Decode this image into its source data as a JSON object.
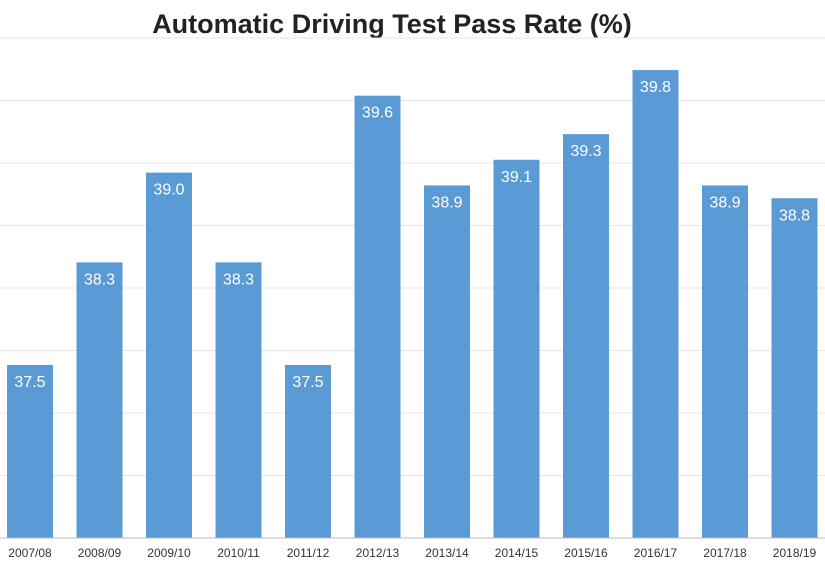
{
  "chart_data": {
    "type": "bar",
    "title": "Automatic Driving Test Pass Rate (%)",
    "xlabel": "",
    "ylabel": "",
    "categories": [
      "2007/08",
      "2008/09",
      "2009/10",
      "2010/11",
      "2011/12",
      "2012/13",
      "2013/14",
      "2014/15",
      "2015/16",
      "2016/17",
      "2017/18",
      "2018/19"
    ],
    "values": [
      37.5,
      38.3,
      39.0,
      38.3,
      37.5,
      39.6,
      38.9,
      39.1,
      39.3,
      39.8,
      38.9,
      38.8
    ],
    "value_labels": [
      "37.5",
      "38.3",
      "39.0",
      "38.3",
      "37.5",
      "39.6",
      "38.9",
      "39.1",
      "39.3",
      "39.8",
      "38.9",
      "38.8"
    ],
    "ylim": [
      36.15,
      40.05
    ],
    "grid": true,
    "legend": "none",
    "bar_color": "#5b9bd5"
  }
}
